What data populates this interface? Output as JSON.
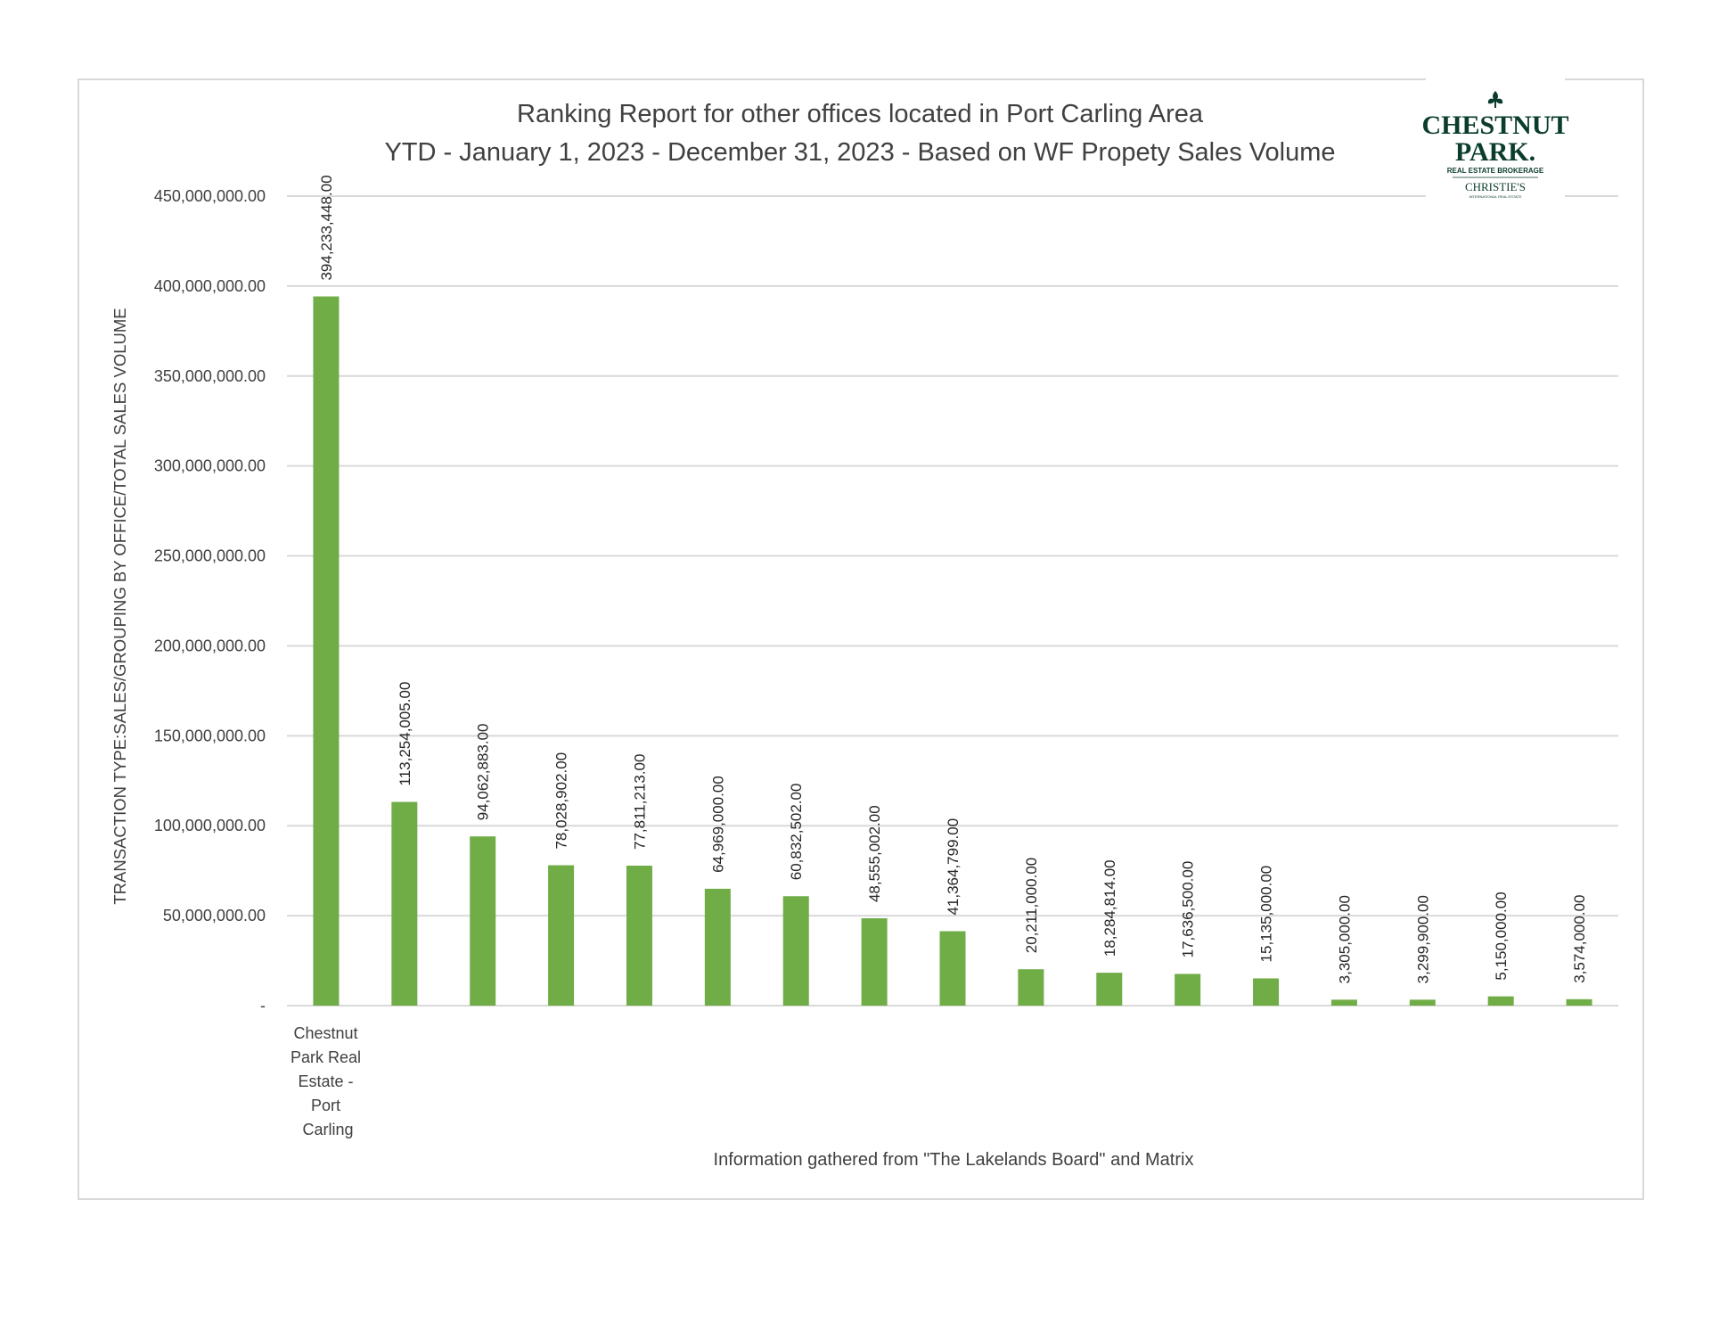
{
  "chart_data": {
    "type": "bar",
    "title": "Ranking Report for other offices located in Port Carling Area",
    "subtitle": "YTD - January 1, 2023 - December 31, 2023 -  Based on WF Propety  Sales Volume",
    "xlabel": "",
    "ylabel": "TRANSACTION TYPE:SALES/GROUPING BY OFFICE/TOTAL SALES VOLUME",
    "footnote": "Information gathered from \"The Lakelands Board\" and Matrix",
    "ylim": [
      0,
      450000000
    ],
    "yticks": [
      0,
      50000000,
      100000000,
      150000000,
      200000000,
      250000000,
      300000000,
      350000000,
      400000000,
      450000000
    ],
    "ytick_labels": [
      "-",
      "50,000,000.00",
      "100,000,000.00",
      "150,000,000.00",
      "200,000,000.00",
      "250,000,000.00",
      "300,000,000.00",
      "350,000,000.00",
      "400,000,000.00",
      "450,000,000.00"
    ],
    "grid": true,
    "bar_color": "#70ad47",
    "categories": [
      "Chestnut Park Real Estate - Port Carling",
      "",
      "",
      "",
      "",
      "",
      "",
      "",
      "",
      "",
      "",
      "",
      "",
      "",
      "",
      "",
      ""
    ],
    "values": [
      394233448,
      113254005,
      94062883,
      78028902,
      77811213,
      64969000,
      60832502,
      48555002,
      41364799,
      20211000,
      18284814,
      17636500,
      15135000,
      3305000,
      3299900,
      5150000,
      3574000
    ],
    "data_labels": [
      "394,233,448.00",
      "113,254,005.00",
      "94,062,883.00",
      "78,028,902.00",
      "77,811,213.00",
      "64,969,000.00",
      "60,832,502.00",
      "48,555,002.00",
      "41,364,799.00",
      "20,211,000.00",
      "18,284,814.00",
      "17,636,500.00",
      "15,135,000.00",
      "3,305,000.00",
      "3,299,900.00",
      "5,150,000.00",
      "3,574,000.00"
    ]
  },
  "logo": {
    "name_line1": "CHESTNUT",
    "name_line2": "PARK.",
    "tagline": "REAL ESTATE BROKERAGE",
    "affiliate": "CHRISTIE'S",
    "affiliate_sub": "INTERNATIONAL REAL ESTATE",
    "color": "#0b3d2e"
  }
}
